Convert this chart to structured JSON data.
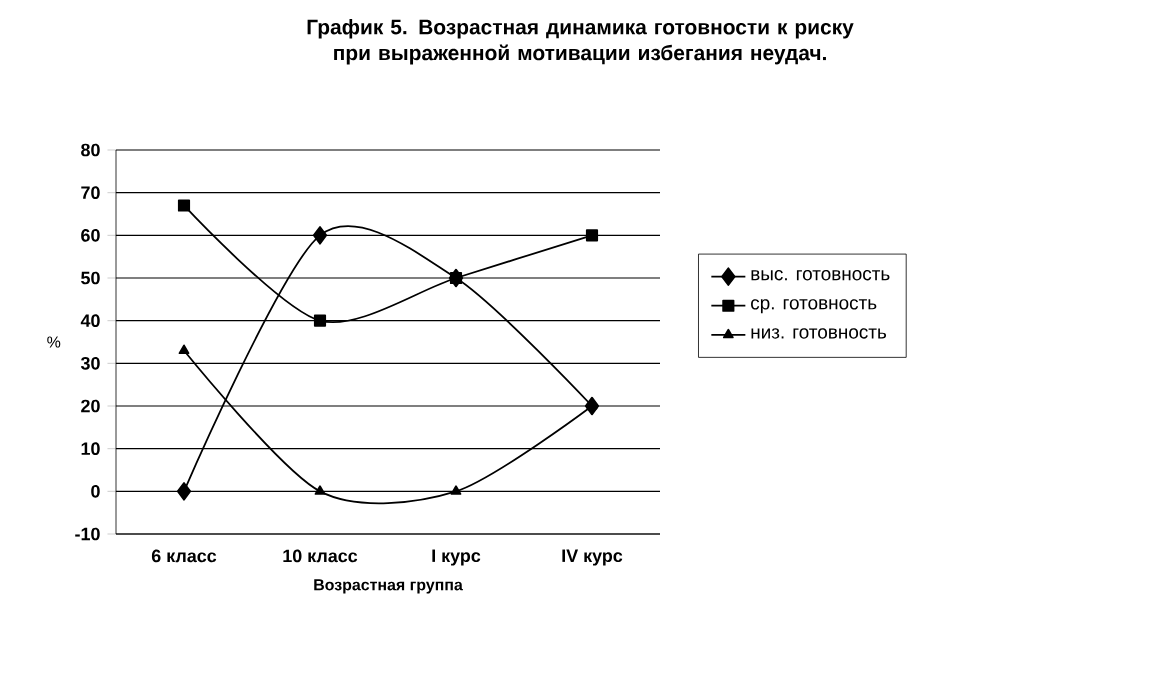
{
  "chart_data": {
    "type": "line",
    "title": "График 5. Возрастная динамика готовности к риску при выраженной мотивации избегания неудач.",
    "xlabel": "Возрастная группа",
    "ylabel": "%",
    "categories": [
      "6 класс",
      "10 класс",
      "I курс",
      "IV курс"
    ],
    "series": [
      {
        "name": "выс. готовность",
        "color": "#000000",
        "marker": "diamond",
        "values": [
          0,
          60,
          50,
          20
        ]
      },
      {
        "name": "ср. готовность",
        "color": "#000000",
        "marker": "square",
        "values": [
          67,
          40,
          50,
          60
        ]
      },
      {
        "name": "низ. готовность",
        "color": "#000000",
        "marker": "triangle",
        "values": [
          33,
          0,
          0,
          20
        ]
      }
    ],
    "ylim": [
      -10,
      80
    ],
    "yticks": [
      -10,
      0,
      10,
      20,
      30,
      40,
      50,
      60,
      70,
      80
    ],
    "grid": "y",
    "legend": "right",
    "line_style": "solid"
  }
}
